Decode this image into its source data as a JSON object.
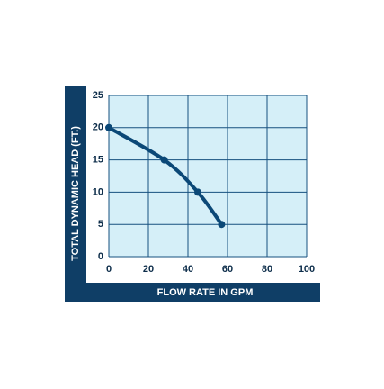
{
  "chart_data": {
    "type": "line",
    "x_label": "FLOW RATE IN GPM",
    "y_label": "TOTAL DYNAMIC HEAD (FT.)",
    "series": [
      {
        "color": "#0b4877",
        "x": [
          0,
          28,
          45,
          57
        ],
        "values": [
          20,
          15,
          10,
          5
        ]
      }
    ],
    "xlim": [
      0,
      100
    ],
    "xticks": [
      0,
      20,
      40,
      60,
      80,
      100
    ],
    "ylim": [
      0,
      25
    ],
    "yticks": [
      0,
      5,
      10,
      15,
      20,
      25
    ],
    "grid": true
  }
}
